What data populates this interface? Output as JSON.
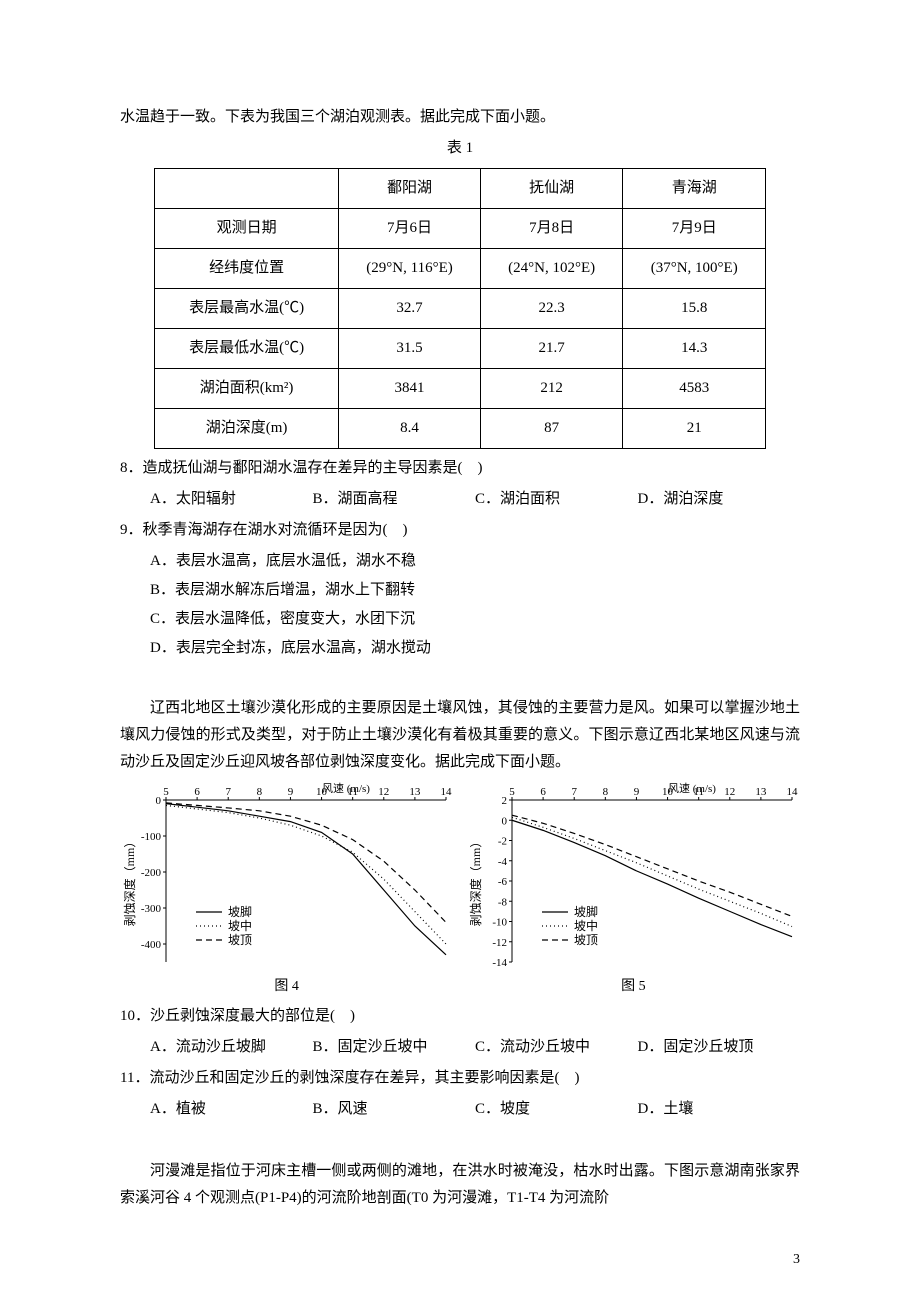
{
  "intro1": "水温趋于一致。下表为我国三个湖泊观测表。据此完成下面小题。",
  "table1_caption": "表 1",
  "table1": {
    "cols": [
      "",
      "鄱阳湖",
      "抚仙湖",
      "青海湖"
    ],
    "rows": [
      [
        "观测日期",
        "7月6日",
        "7月8日",
        "7月9日"
      ],
      [
        "经纬度位置",
        "(29°N, 116°E)",
        "(24°N, 102°E)",
        "(37°N, 100°E)"
      ],
      [
        "表层最高水温(℃)",
        "32.7",
        "22.3",
        "15.8"
      ],
      [
        "表层最低水温(℃)",
        "31.5",
        "21.7",
        "14.3"
      ],
      [
        "湖泊面积(km²)",
        "3841",
        "212",
        "4583"
      ],
      [
        "湖泊深度(m)",
        "8.4",
        "87",
        "21"
      ]
    ]
  },
  "q8": {
    "stem": "8．造成抚仙湖与鄱阳湖水温存在差异的主导因素是(　)",
    "opts": [
      "A．太阳辐射",
      "B．湖面高程",
      "C．湖泊面积",
      "D．湖泊深度"
    ]
  },
  "q9": {
    "stem": "9．秋季青海湖存在湖水对流循环是因为(　)",
    "opts": [
      "A．表层水温高，底层水温低，湖水不稳",
      "B．表层湖水解冻后增温，湖水上下翻转",
      "C．表层水温降低，密度变大，水团下沉",
      "D．表层完全封冻，底层水温高，湖水搅动"
    ]
  },
  "intro2": "辽西北地区土壤沙漠化形成的主要原因是土壤风蚀，其侵蚀的主要营力是风。如果可以掌握沙地土壤风力侵蚀的形式及类型，对于防止土壤沙漠化有着极其重要的意义。下图示意辽西北某地区风速与流动沙丘及固定沙丘迎风坡各部位剥蚀深度变化。据此完成下面小题。",
  "chart_common": {
    "xlabel": "风速 (m/s)",
    "ylabel": "剥蚀深度（mm）",
    "x_min": 5,
    "x_max": 14,
    "x_ticks": [
      5,
      6,
      7,
      8,
      9,
      10,
      11,
      12,
      13,
      14
    ],
    "legend": [
      "坡脚",
      "坡中",
      "坡顶"
    ],
    "legend_styles": [
      "solid",
      "dotted",
      "dashed"
    ],
    "line_color": "#000000",
    "axis_color": "#000000",
    "bg_color": "#ffffff",
    "label_fontsize": 12,
    "line_width": 1.2
  },
  "chart4": {
    "caption": "图 4",
    "y_min": -450,
    "y_max": 0,
    "y_ticks": [
      0,
      -100,
      -200,
      -300,
      -400
    ],
    "series": {
      "pojiao": {
        "x": [
          5,
          6,
          7,
          8,
          9,
          10,
          11,
          12,
          13,
          14
        ],
        "y": [
          -10,
          -20,
          -30,
          -45,
          -60,
          -90,
          -150,
          -250,
          -350,
          -430
        ]
      },
      "pozhong": {
        "x": [
          5,
          6,
          7,
          8,
          9,
          10,
          11,
          12,
          13,
          14
        ],
        "y": [
          -15,
          -25,
          -35,
          -50,
          -70,
          -100,
          -145,
          -220,
          -310,
          -400
        ]
      },
      "poding": {
        "x": [
          5,
          6,
          7,
          8,
          9,
          10,
          11,
          12,
          13,
          14
        ],
        "y": [
          -8,
          -15,
          -22,
          -30,
          -45,
          -70,
          -110,
          -170,
          -250,
          -340
        ]
      }
    }
  },
  "chart5": {
    "caption": "图 5",
    "y_min": -14,
    "y_max": 2,
    "y_ticks": [
      2,
      0,
      -2,
      -4,
      -6,
      -8,
      -10,
      -12,
      -14
    ],
    "series": {
      "pojiao": {
        "x": [
          5,
          6,
          7,
          8,
          9,
          10,
          11,
          12,
          13,
          14
        ],
        "y": [
          0,
          -1,
          -2.2,
          -3.5,
          -5,
          -6.3,
          -7.7,
          -9,
          -10.3,
          -11.5
        ]
      },
      "pozhong": {
        "x": [
          5,
          6,
          7,
          8,
          9,
          10,
          11,
          12,
          13,
          14
        ],
        "y": [
          0.3,
          -0.7,
          -1.8,
          -3,
          -4.2,
          -5.5,
          -6.8,
          -8,
          -9.2,
          -10.5
        ]
      },
      "poding": {
        "x": [
          5,
          6,
          7,
          8,
          9,
          10,
          11,
          12,
          13,
          14
        ],
        "y": [
          0.5,
          -0.3,
          -1.3,
          -2.4,
          -3.6,
          -4.8,
          -6,
          -7.1,
          -8.3,
          -9.5
        ]
      }
    }
  },
  "q10": {
    "stem": "10．沙丘剥蚀深度最大的部位是(　)",
    "opts": [
      "A．流动沙丘坡脚",
      "B．固定沙丘坡中",
      "C．流动沙丘坡中",
      "D．固定沙丘坡顶"
    ]
  },
  "q11": {
    "stem": "11．流动沙丘和固定沙丘的剥蚀深度存在差异，其主要影响因素是(　)",
    "opts": [
      "A．植被",
      "B．风速",
      "C．坡度",
      "D．土壤"
    ]
  },
  "intro3": "河漫滩是指位于河床主槽一侧或两侧的滩地，在洪水时被淹没，枯水时出露。下图示意湖南张家界索溪河谷 4 个观测点(P1-P4)的河流阶地剖面(T0 为河漫滩，T1-T4 为河流阶",
  "page_number": "3"
}
